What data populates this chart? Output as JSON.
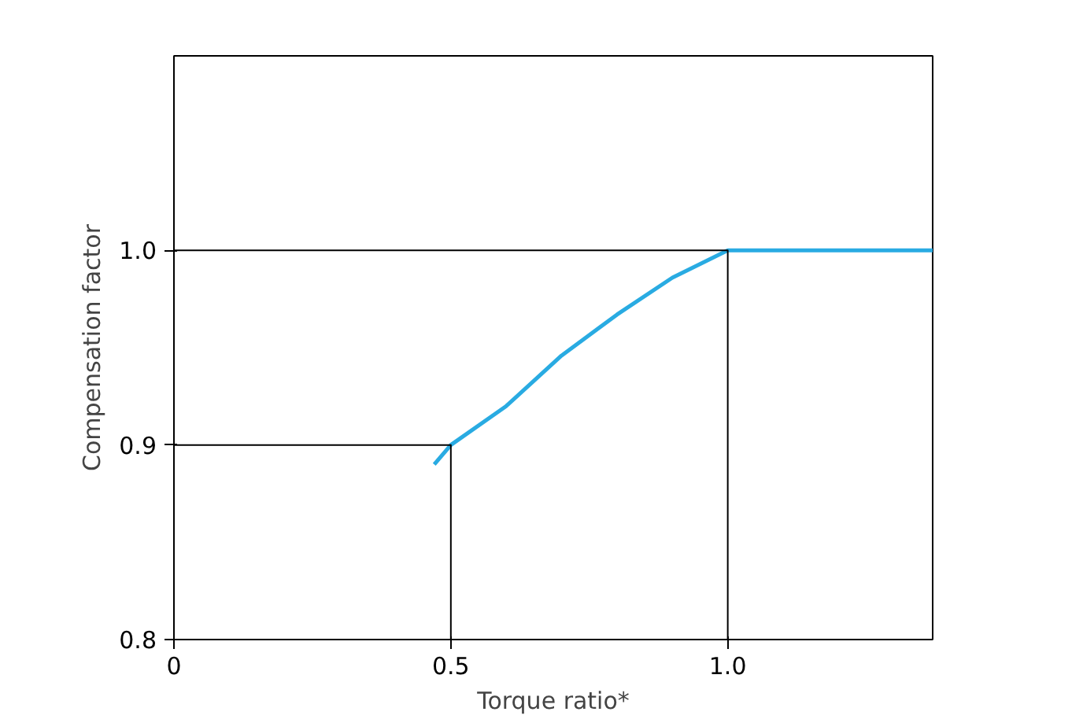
{
  "chart_data": {
    "type": "line",
    "xlabel": "Torque ratio*",
    "ylabel": "Compensation factor",
    "xlim": [
      0,
      1.37
    ],
    "ylim": [
      0.8,
      1.1
    ],
    "xticks": [
      0,
      0.5,
      {
        "value": 1,
        "label": "1.0"
      }
    ],
    "yticks": [
      0.8,
      0.9,
      {
        "value": 1,
        "label": "1.0"
      }
    ],
    "grid": false,
    "marker": "none",
    "line_style": "solid",
    "series": [
      {
        "color": "#29abe2",
        "x": [
          0.47,
          0.5,
          0.6,
          0.7,
          0.8,
          0.9,
          1.0,
          1.37
        ],
        "values": [
          0.89,
          0.9,
          0.92,
          0.946,
          0.967,
          0.986,
          1.0,
          1.0
        ]
      },
      {
        "color": "#000000",
        "x": [
          0,
          0.5,
          0.5
        ],
        "values": [
          0.9,
          0.9,
          0.8
        ]
      },
      {
        "color": "#000000",
        "x": [
          0,
          1.0,
          1.0
        ],
        "values": [
          1.0,
          1.0,
          0.8
        ]
      }
    ]
  }
}
